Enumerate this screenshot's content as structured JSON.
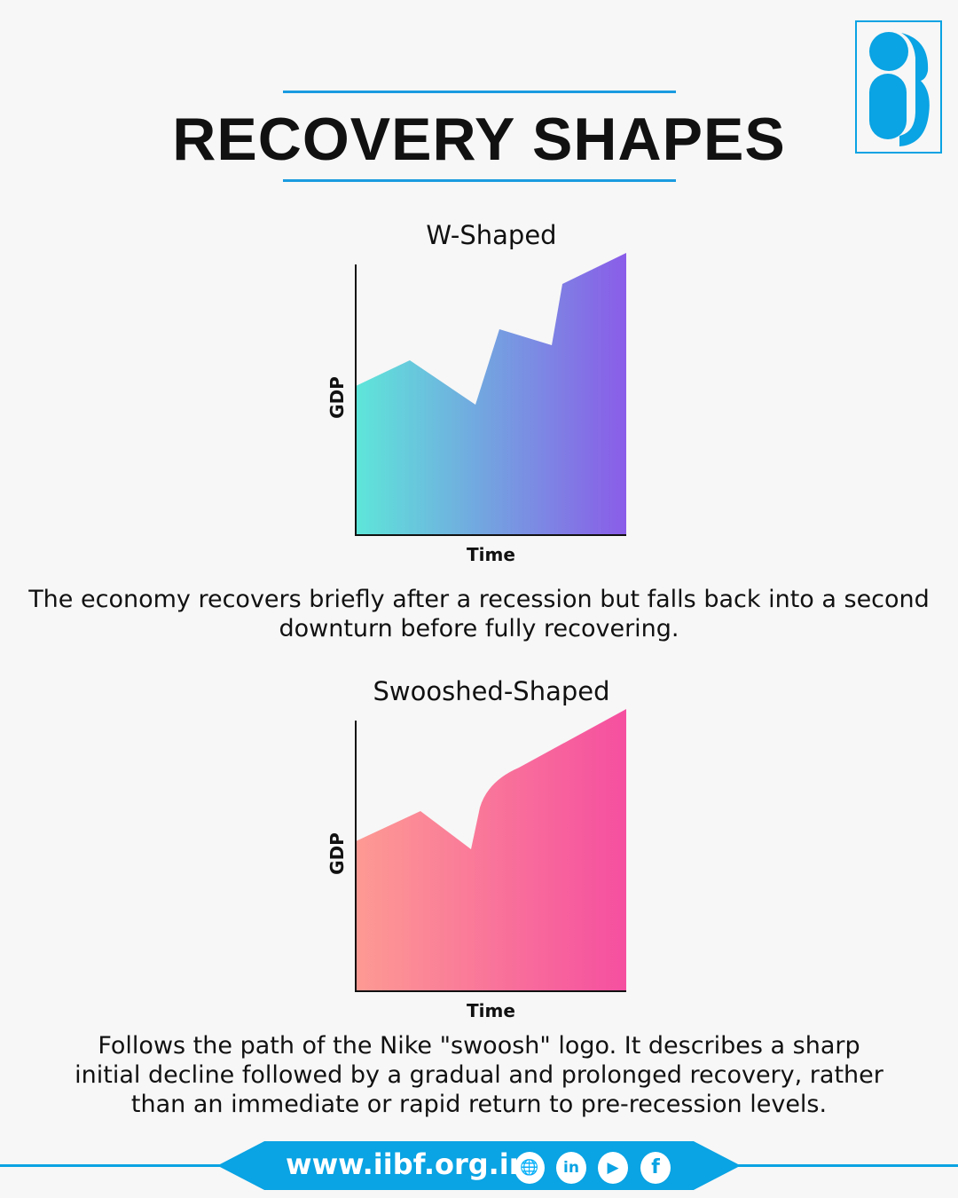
{
  "title": "RECOVERY SHAPES",
  "charts": [
    {
      "title": "W-Shaped",
      "ylabel": "GDP",
      "xlabel": "Time",
      "description": "The economy recovers briefly after a recession but falls back into a second downturn before fully recovering.",
      "gradient": [
        "#5ee6d9",
        "#8a5ce8"
      ]
    },
    {
      "title": "Swooshed-Shaped",
      "ylabel": "GDP",
      "xlabel": "Time",
      "description": "Follows the path of the Nike \"swoosh\" logo. It describes a sharp initial decline followed by a gradual and prolonged recovery, rather than an immediate or rapid return to pre-recession levels.",
      "gradient": [
        "#fd9a93",
        "#f54fa0"
      ]
    }
  ],
  "footer": {
    "url": "www.iibf.org.in",
    "icons": [
      "globe-icon",
      "linkedin-icon",
      "youtube-icon",
      "facebook-icon"
    ]
  },
  "colors": {
    "brand": "#0aa3e3"
  }
}
